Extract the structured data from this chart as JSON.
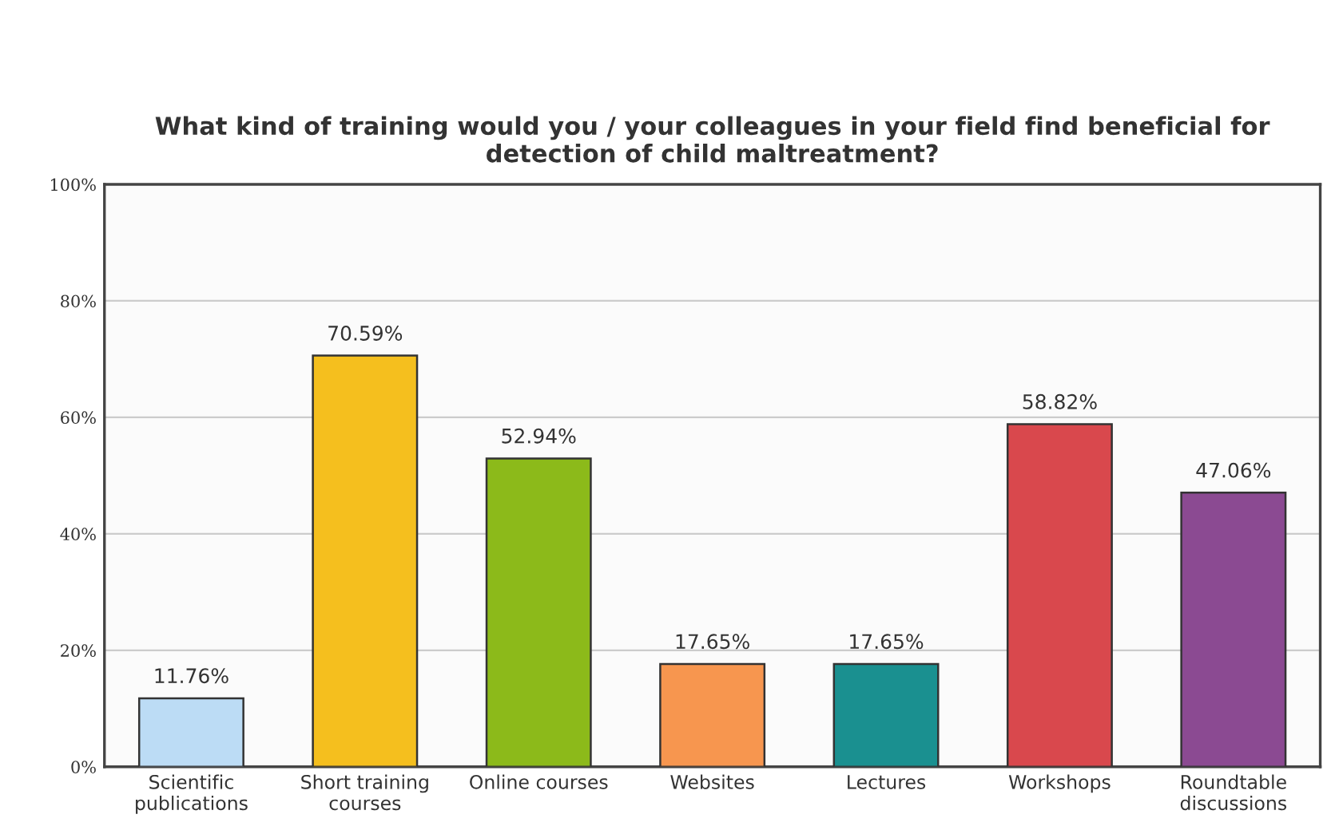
{
  "chart_data": {
    "type": "bar",
    "title": "What kind of training would you / your colleagues in your field find beneficial for\ndetection of child maltreatment?",
    "categories": [
      "Scientific\npublications",
      "Short training\ncourses",
      "Online courses",
      "Websites",
      "Lectures",
      "Workshops",
      "Roundtable\ndiscussions"
    ],
    "values": [
      11.76,
      70.59,
      52.94,
      17.65,
      17.65,
      58.82,
      47.06
    ],
    "value_labels": [
      "11.76%",
      "70.59%",
      "52.94%",
      "17.65%",
      "17.65%",
      "58.82%",
      "47.06%"
    ],
    "colors": [
      "#bcdcf5",
      "#f5bf1e",
      "#8cba1a",
      "#f7964f",
      "#1a9090",
      "#d9484d",
      "#8b4a92"
    ],
    "ylim": [
      0,
      100
    ],
    "yticks": [
      {
        "value": 0,
        "label": "0%"
      },
      {
        "value": 20,
        "label": "20%"
      },
      {
        "value": 40,
        "label": "40%"
      },
      {
        "value": 60,
        "label": "60%"
      },
      {
        "value": 80,
        "label": "80%"
      },
      {
        "value": 100,
        "label": "100%"
      }
    ],
    "grid": "y",
    "legend": false
  }
}
